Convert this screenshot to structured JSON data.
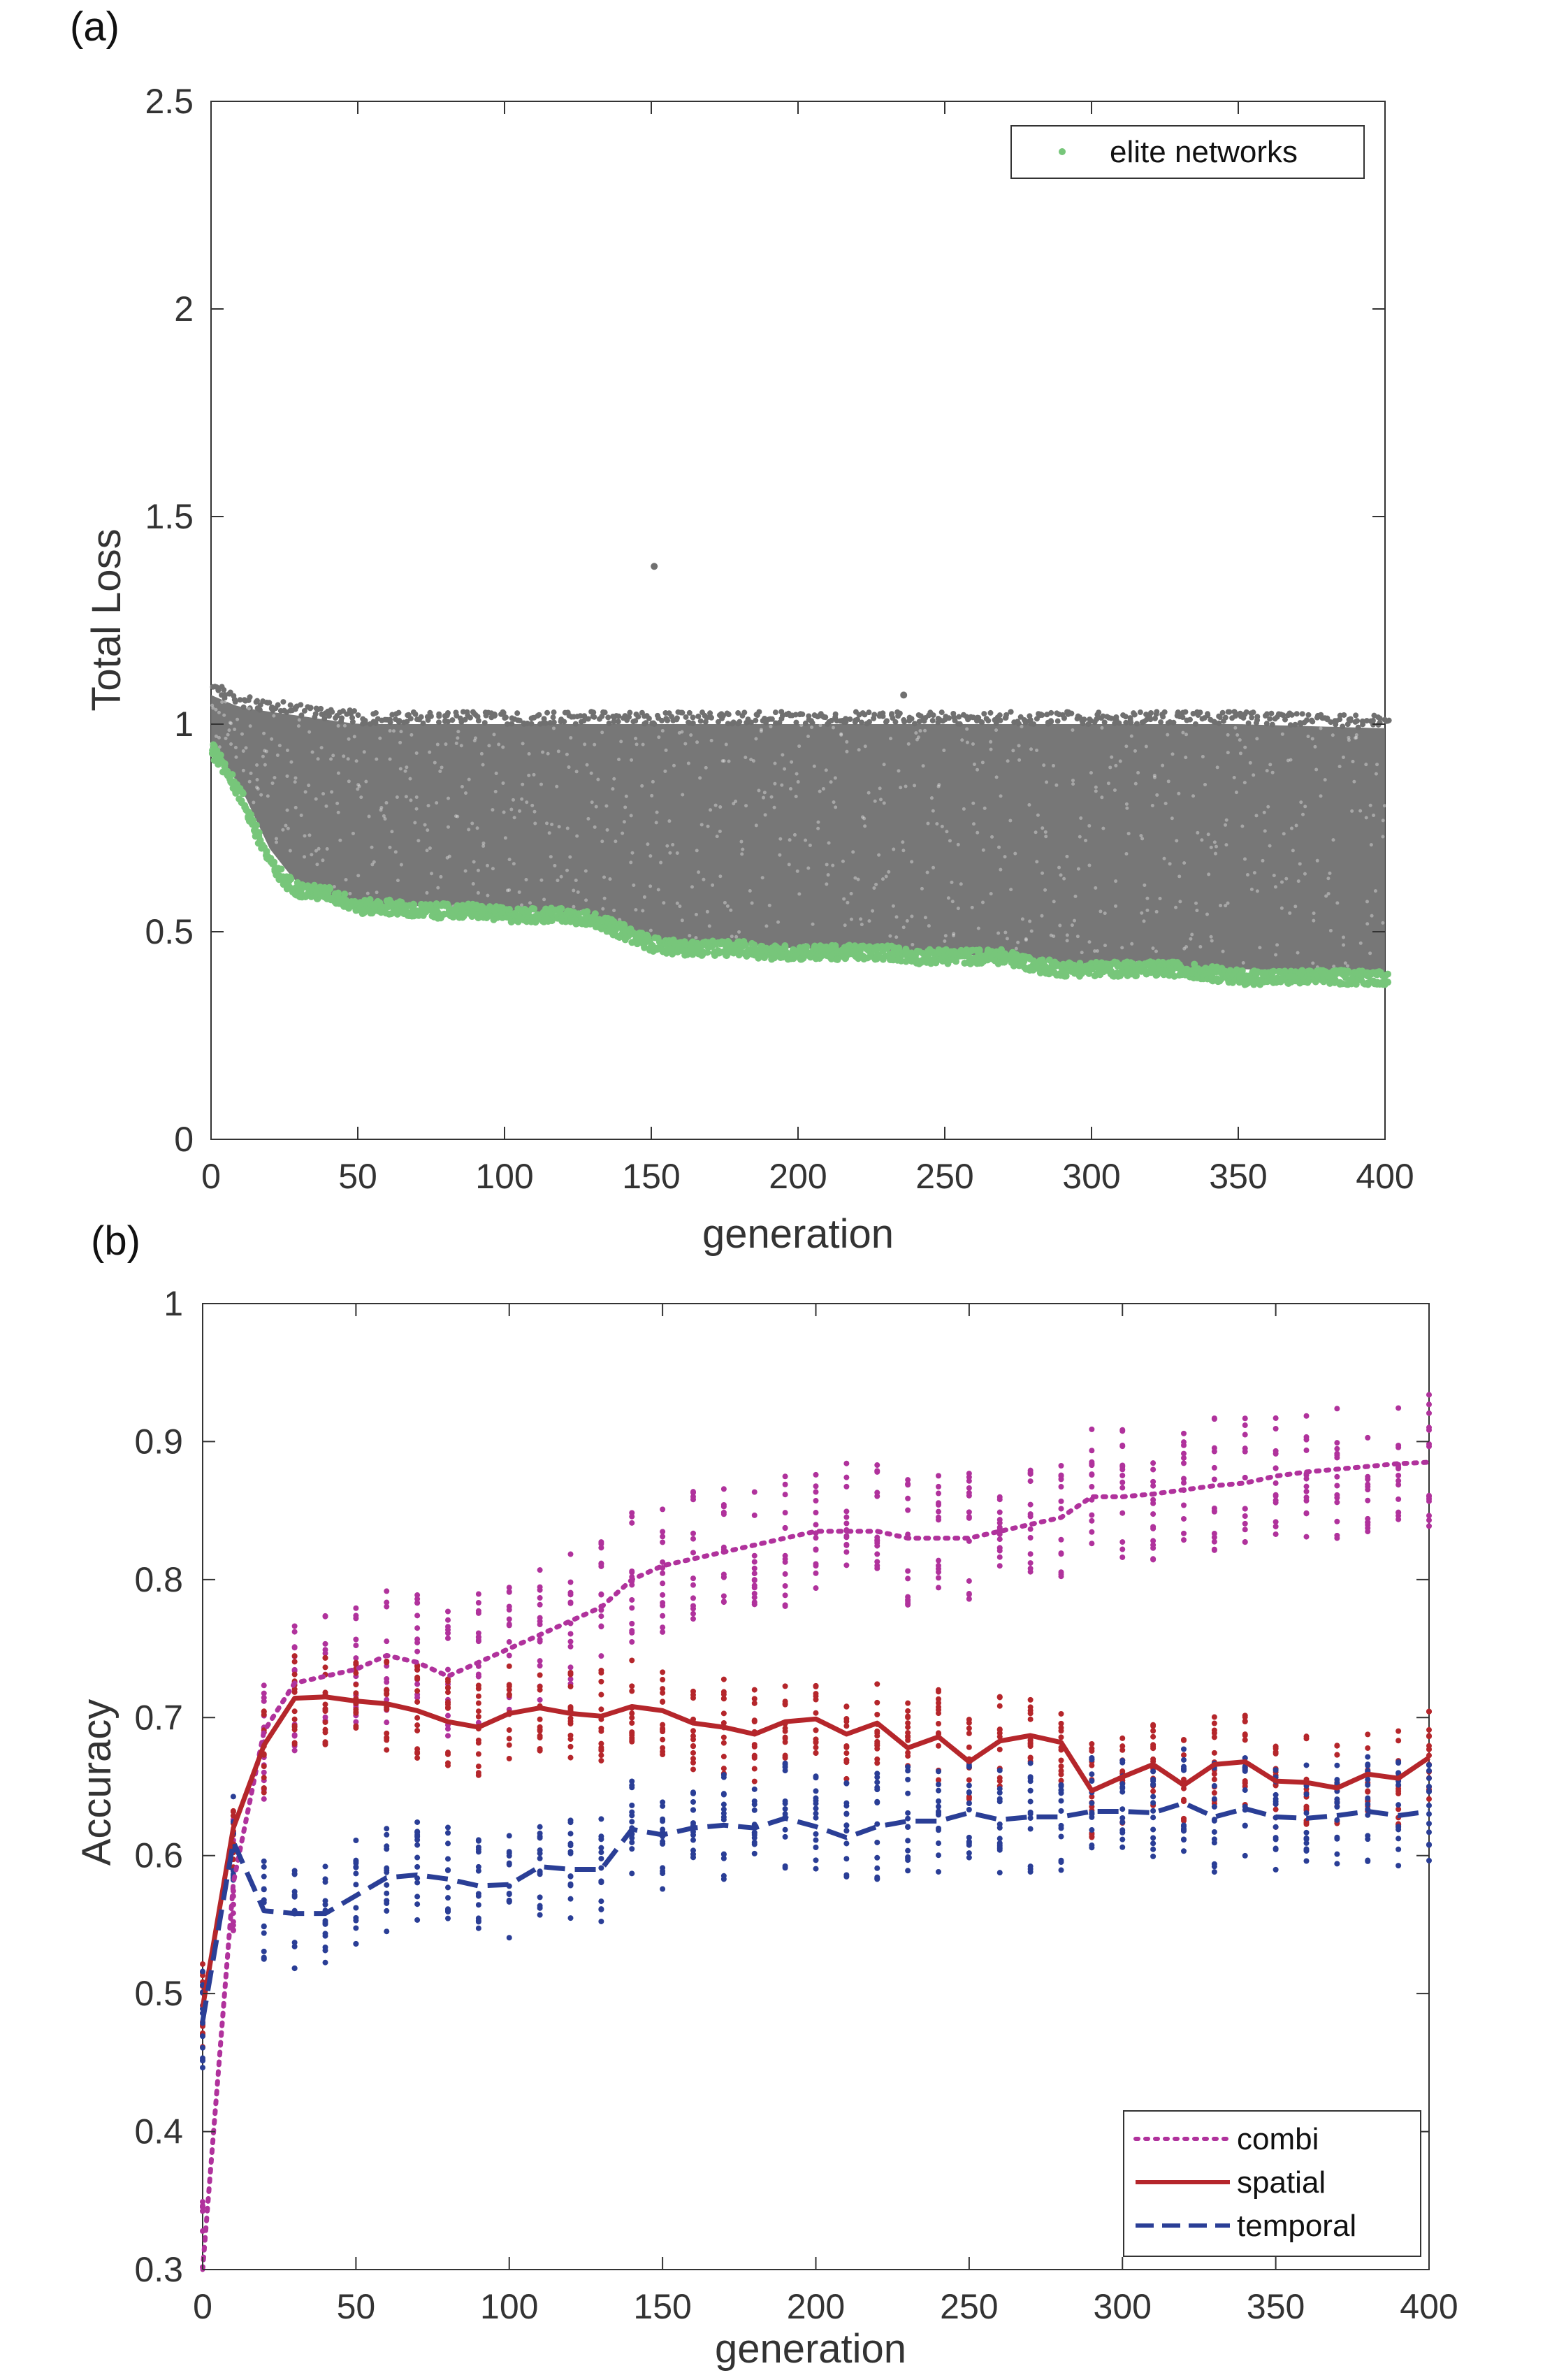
{
  "chart_data": [
    {
      "panel_label": "(a)",
      "type": "scatter",
      "xlabel": "generation",
      "ylabel": "Total Loss",
      "xlim": [
        0,
        400
      ],
      "ylim": [
        0,
        2.5
      ],
      "xticks": [
        "0",
        "50",
        "100",
        "150",
        "200",
        "250",
        "300",
        "350",
        "400"
      ],
      "yticks": [
        "0",
        "0.5",
        "1",
        "1.5",
        "2",
        "2.5"
      ],
      "grid": false,
      "legend": {
        "position": "top-right",
        "entries": [
          "elite networks"
        ]
      },
      "series": [
        {
          "name": "",
          "color": "#707070",
          "description_points": "dense cloud of all networks per generation",
          "upper_envelope": [
            [
              0,
              1.07
            ],
            [
              10,
              1.04
            ],
            [
              50,
              1.0
            ],
            [
              100,
              1.0
            ],
            [
              150,
              1.0
            ],
            [
              200,
              1.0
            ],
            [
              250,
              1.0
            ],
            [
              300,
              1.0
            ],
            [
              350,
              1.0
            ],
            [
              400,
              0.99
            ]
          ],
          "lower_envelope": [
            [
              0,
              0.95
            ],
            [
              10,
              0.85
            ],
            [
              20,
              0.7
            ],
            [
              30,
              0.61
            ],
            [
              50,
              0.57
            ],
            [
              100,
              0.55
            ],
            [
              130,
              0.54
            ],
            [
              150,
              0.48
            ],
            [
              200,
              0.46
            ],
            [
              250,
              0.45
            ],
            [
              300,
              0.42
            ],
            [
              350,
              0.41
            ],
            [
              400,
              0.4
            ]
          ],
          "outliers": [
            [
              151,
              1.38
            ],
            [
              236,
              1.07
            ]
          ]
        },
        {
          "name": "elite networks",
          "color": "#77c67a",
          "values": [
            [
              0,
              0.94
            ],
            [
              5,
              0.89
            ],
            [
              10,
              0.82
            ],
            [
              15,
              0.74
            ],
            [
              20,
              0.66
            ],
            [
              25,
              0.62
            ],
            [
              30,
              0.6
            ],
            [
              40,
              0.59
            ],
            [
              50,
              0.56
            ],
            [
              60,
              0.56
            ],
            [
              70,
              0.55
            ],
            [
              80,
              0.55
            ],
            [
              90,
              0.55
            ],
            [
              100,
              0.54
            ],
            [
              110,
              0.54
            ],
            [
              120,
              0.54
            ],
            [
              130,
              0.53
            ],
            [
              140,
              0.5
            ],
            [
              150,
              0.47
            ],
            [
              160,
              0.46
            ],
            [
              170,
              0.46
            ],
            [
              180,
              0.46
            ],
            [
              190,
              0.45
            ],
            [
              200,
              0.45
            ],
            [
              210,
              0.45
            ],
            [
              220,
              0.45
            ],
            [
              230,
              0.45
            ],
            [
              240,
              0.44
            ],
            [
              250,
              0.44
            ],
            [
              260,
              0.44
            ],
            [
              270,
              0.44
            ],
            [
              280,
              0.42
            ],
            [
              290,
              0.41
            ],
            [
              300,
              0.41
            ],
            [
              310,
              0.41
            ],
            [
              320,
              0.41
            ],
            [
              330,
              0.41
            ],
            [
              340,
              0.4
            ],
            [
              350,
              0.39
            ],
            [
              360,
              0.39
            ],
            [
              370,
              0.39
            ],
            [
              380,
              0.39
            ],
            [
              390,
              0.39
            ],
            [
              400,
              0.39
            ]
          ]
        }
      ]
    },
    {
      "panel_label": "(b)",
      "type": "line",
      "xlabel": "generation",
      "ylabel": "Accuracy",
      "xlim": [
        0,
        400
      ],
      "ylim": [
        0.3,
        1
      ],
      "xticks": [
        "0",
        "50",
        "100",
        "150",
        "200",
        "250",
        "300",
        "350",
        "400"
      ],
      "yticks": [
        "0.3",
        "0.4",
        "0.5",
        "0.6",
        "0.7",
        "0.8",
        "0.9",
        "1"
      ],
      "grid": false,
      "legend": {
        "position": "bottom-right",
        "entries": [
          "combi",
          "spatial",
          "temporal"
        ]
      },
      "x": [
        0,
        10,
        20,
        30,
        40,
        50,
        60,
        70,
        80,
        90,
        100,
        110,
        120,
        130,
        140,
        150,
        160,
        170,
        180,
        190,
        200,
        210,
        220,
        230,
        240,
        250,
        260,
        270,
        280,
        290,
        300,
        310,
        320,
        330,
        340,
        350,
        360,
        370,
        380,
        390,
        400
      ],
      "series": [
        {
          "name": "combi",
          "color": "#b0329c",
          "style": "dotted",
          "values": [
            0.3,
            0.58,
            0.69,
            0.725,
            0.73,
            0.735,
            0.745,
            0.74,
            0.73,
            0.74,
            0.75,
            0.76,
            0.77,
            0.78,
            0.8,
            0.81,
            0.815,
            0.82,
            0.825,
            0.83,
            0.835,
            0.835,
            0.835,
            0.83,
            0.83,
            0.83,
            0.835,
            0.84,
            0.845,
            0.86,
            0.86,
            0.862,
            0.865,
            0.868,
            0.87,
            0.875,
            0.878,
            0.88,
            0.882,
            0.884,
            0.885
          ]
        },
        {
          "name": "spatial",
          "color": "#b5262b",
          "style": "solid",
          "values": [
            0.49,
            0.62,
            0.68,
            0.714,
            0.715,
            0.712,
            0.71,
            0.705,
            0.697,
            0.693,
            0.703,
            0.707,
            0.703,
            0.701,
            0.708,
            0.705,
            0.696,
            0.693,
            0.688,
            0.697,
            0.699,
            0.688,
            0.696,
            0.678,
            0.686,
            0.668,
            0.683,
            0.687,
            0.682,
            0.647,
            0.657,
            0.666,
            0.651,
            0.666,
            0.668,
            0.654,
            0.653,
            0.649,
            0.659,
            0.656,
            0.671
          ]
        },
        {
          "name": "temporal",
          "color": "#2a3e96",
          "style": "dashed",
          "values": [
            0.48,
            0.61,
            0.56,
            0.558,
            0.558,
            0.571,
            0.584,
            0.586,
            0.583,
            0.578,
            0.579,
            0.592,
            0.59,
            0.59,
            0.619,
            0.615,
            0.62,
            0.622,
            0.62,
            0.627,
            0.621,
            0.613,
            0.621,
            0.625,
            0.625,
            0.631,
            0.626,
            0.628,
            0.628,
            0.632,
            0.632,
            0.631,
            0.638,
            0.628,
            0.634,
            0.628,
            0.627,
            0.629,
            0.632,
            0.629,
            0.632
          ]
        }
      ]
    }
  ]
}
